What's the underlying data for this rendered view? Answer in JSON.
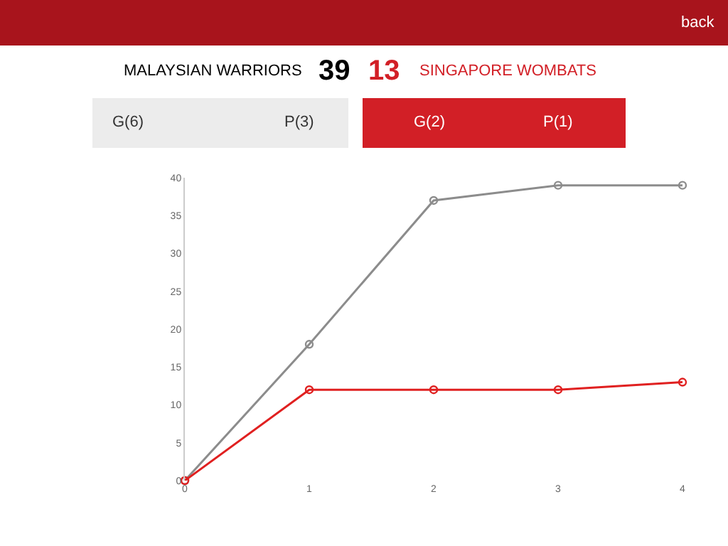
{
  "chart_data": {
    "type": "line",
    "x": [
      0,
      1,
      2,
      3,
      4
    ],
    "series": [
      {
        "color": "#8c8c8c",
        "values": [
          0,
          18,
          37,
          39,
          39
        ]
      },
      {
        "color": "#e02020",
        "values": [
          0,
          12,
          12,
          12,
          13
        ]
      }
    ],
    "xlim": [
      0,
      4
    ],
    "xticks": [
      0,
      1,
      2,
      3,
      4
    ],
    "ylim": [
      0,
      40
    ],
    "yticks": [
      0,
      5,
      10,
      15,
      20,
      25,
      30,
      35,
      40
    ],
    "marker": "circle",
    "line_style": "solid",
    "annotations": [
      "back",
      "MALAYSIAN WARRIORS",
      "39",
      "13",
      "SINGAPORE WOMBATS",
      "G(6)",
      "P(3)",
      "G(2)",
      "P(1)"
    ]
  }
}
